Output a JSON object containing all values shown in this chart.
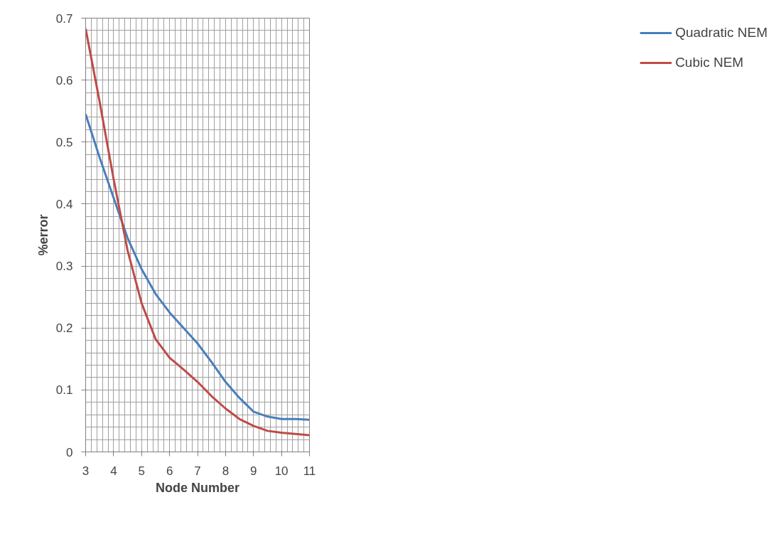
{
  "chart_data": {
    "type": "line",
    "xlabel": "Node Number",
    "ylabel": "%error",
    "x": [
      3,
      3.5,
      4,
      4.5,
      5,
      5.5,
      6,
      6.5,
      7,
      7.5,
      8,
      8.5,
      9,
      9.5,
      10,
      10.5,
      11
    ],
    "series": [
      {
        "name": "Quadratic NEM",
        "color": "#4a7ebb",
        "values": [
          0.545,
          0.475,
          0.41,
          0.345,
          0.295,
          0.255,
          0.225,
          0.2,
          0.175,
          0.145,
          0.113,
          0.087,
          0.065,
          0.057,
          0.053,
          0.053,
          0.052
        ]
      },
      {
        "name": "Cubic NEM",
        "color": "#be4b48",
        "values": [
          0.683,
          0.565,
          0.44,
          0.325,
          0.24,
          0.182,
          0.152,
          0.133,
          0.113,
          0.09,
          0.07,
          0.053,
          0.042,
          0.034,
          0.031,
          0.029,
          0.027
        ]
      }
    ],
    "xlim": [
      3,
      11
    ],
    "ylim": [
      0,
      0.7
    ],
    "xticks": [
      3,
      4,
      5,
      6,
      7,
      8,
      9,
      10,
      11
    ],
    "yticks": [
      0,
      0.1,
      0.2,
      0.3,
      0.4,
      0.5,
      0.6,
      0.7
    ],
    "grid": true,
    "legend": "right",
    "marker": "none",
    "line_style": "solid"
  }
}
